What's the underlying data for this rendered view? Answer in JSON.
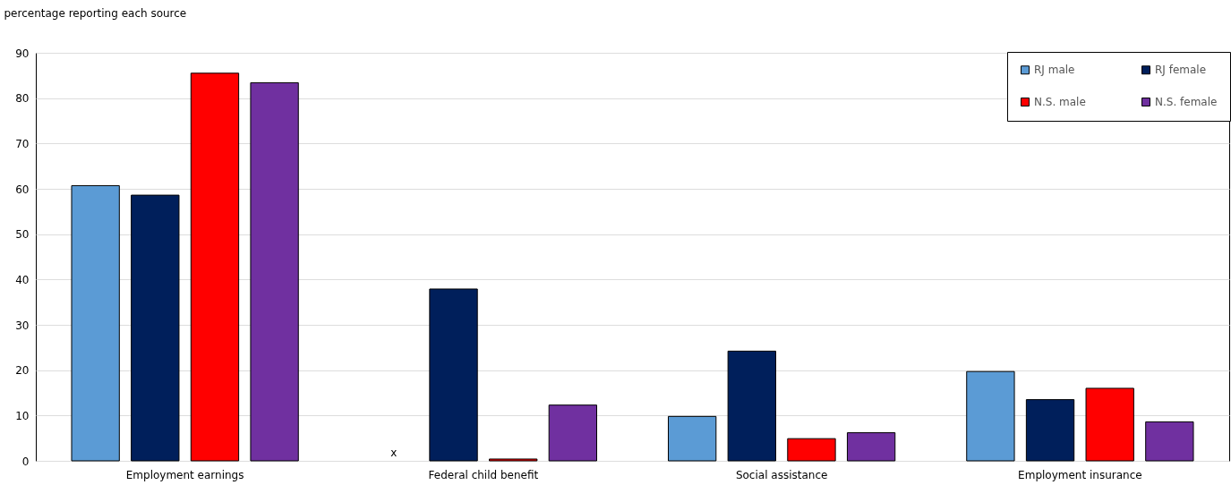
{
  "chart_data": {
    "type": "bar",
    "ylabel": "percentage reporting each source",
    "categories": [
      "Employment earnings",
      "Federal child benefit",
      "Social assistance",
      "Employment insurance"
    ],
    "series": [
      {
        "name": "RJ male",
        "color": "#5b9bd5",
        "values": [
          60.7,
          null,
          9.8,
          19.7
        ]
      },
      {
        "name": "RJ female",
        "color": "#001f5b",
        "values": [
          58.6,
          37.9,
          24.2,
          13.5
        ]
      },
      {
        "name": "N.S. male",
        "color": "#ff0000",
        "values": [
          85.5,
          0.4,
          4.9,
          16.0
        ]
      },
      {
        "name": "N.S. female",
        "color": "#7030a0",
        "values": [
          83.4,
          12.3,
          6.2,
          8.6
        ]
      }
    ],
    "annotations": [
      "x"
    ],
    "ylim": [
      0,
      90
    ],
    "yticks": [
      0,
      10,
      20,
      30,
      40,
      50,
      60,
      70,
      80,
      90
    ],
    "grid": "y",
    "legend": "top right"
  }
}
